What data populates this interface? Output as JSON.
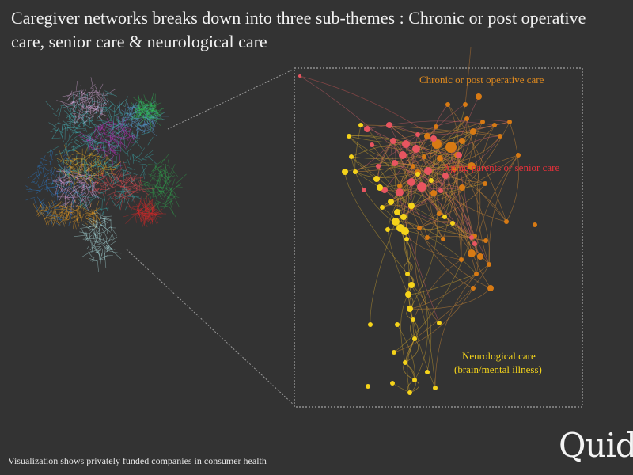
{
  "title": "Caregiver networks breaks down into three sub-themes : Chronic or post operative care, senior care & neurological care",
  "footer": "Visualization shows privately funded companies in consumer health",
  "logo": "Quid",
  "clusters": [
    {
      "key": "chronic",
      "label": "Chronic or post operative care",
      "color": "#e08a1e"
    },
    {
      "key": "senior",
      "label": "Aging parents or senior care",
      "color": "#e8303a"
    },
    {
      "key": "neuro",
      "label_line1": "Neurological care",
      "label_line2": "(brain/mental illness)",
      "color": "#f2d21b"
    }
  ],
  "colors": {
    "background": "#333333",
    "frame": "#bdbdbd",
    "chronic": "#d77a14",
    "senior": "#e85560",
    "neuro": "#f5d31a"
  }
}
